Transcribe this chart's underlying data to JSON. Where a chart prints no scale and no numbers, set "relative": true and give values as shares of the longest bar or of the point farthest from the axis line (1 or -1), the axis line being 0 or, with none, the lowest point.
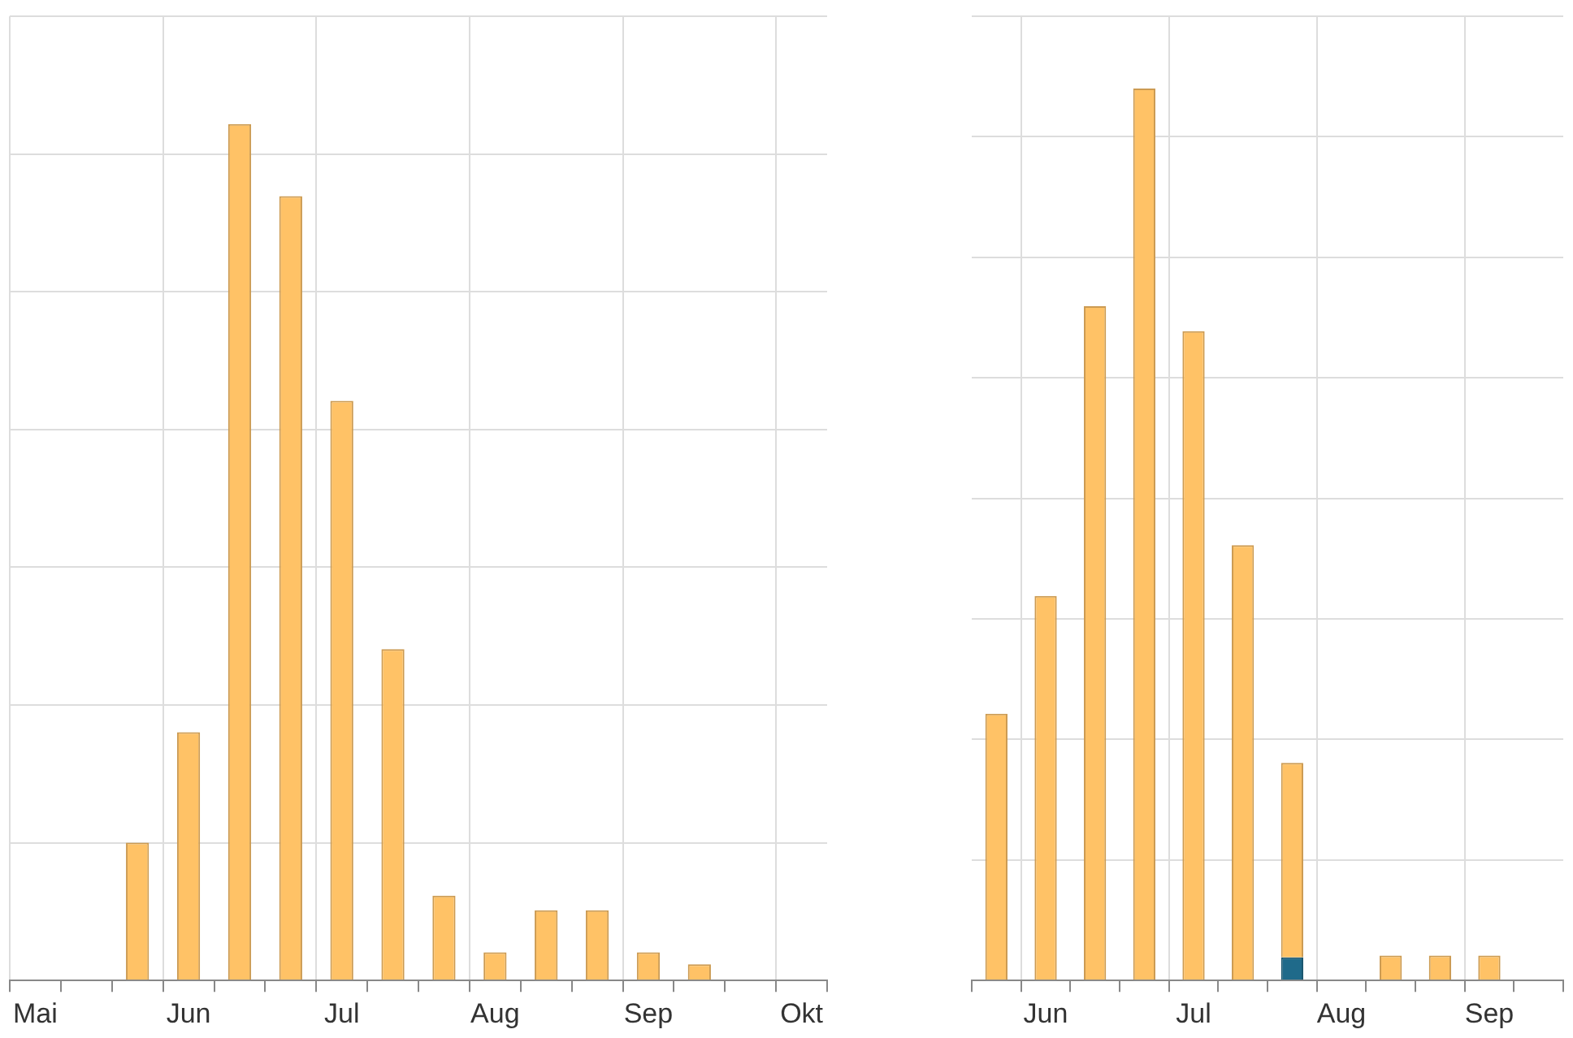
{
  "chart_data": [
    {
      "type": "bar",
      "relative": true,
      "grid": true,
      "stacked": true,
      "categories": [
        "Mai",
        null,
        null,
        "Jun",
        null,
        null,
        "Jul",
        null,
        null,
        "Aug",
        null,
        null,
        "Sep",
        null,
        null,
        "Okt"
      ],
      "series": [
        {
          "color": "#ffc266",
          "values": [
            0,
            0,
            0.161,
            0.29,
            1,
            0.916,
            0.677,
            0.387,
            0.099,
            0.033,
            0.082,
            0.082,
            0.033,
            0.019,
            0,
            0
          ]
        }
      ]
    },
    {
      "type": "bar",
      "relative": true,
      "grid": true,
      "stacked": true,
      "categories": [
        null,
        "Jun",
        null,
        null,
        "Jul",
        null,
        null,
        "Aug",
        null,
        null,
        "Sep",
        null
      ],
      "series": [
        {
          "color": "#1f6a8a",
          "values": [
            0,
            0,
            0,
            0,
            0,
            0,
            0.026,
            0,
            0,
            0,
            0,
            0
          ]
        },
        {
          "color": "#ffc266",
          "values": [
            0.299,
            0.431,
            0.756,
            1,
            0.728,
            0.488,
            0.218,
            0,
            0.028,
            0.028,
            0.028,
            0
          ]
        }
      ]
    }
  ]
}
